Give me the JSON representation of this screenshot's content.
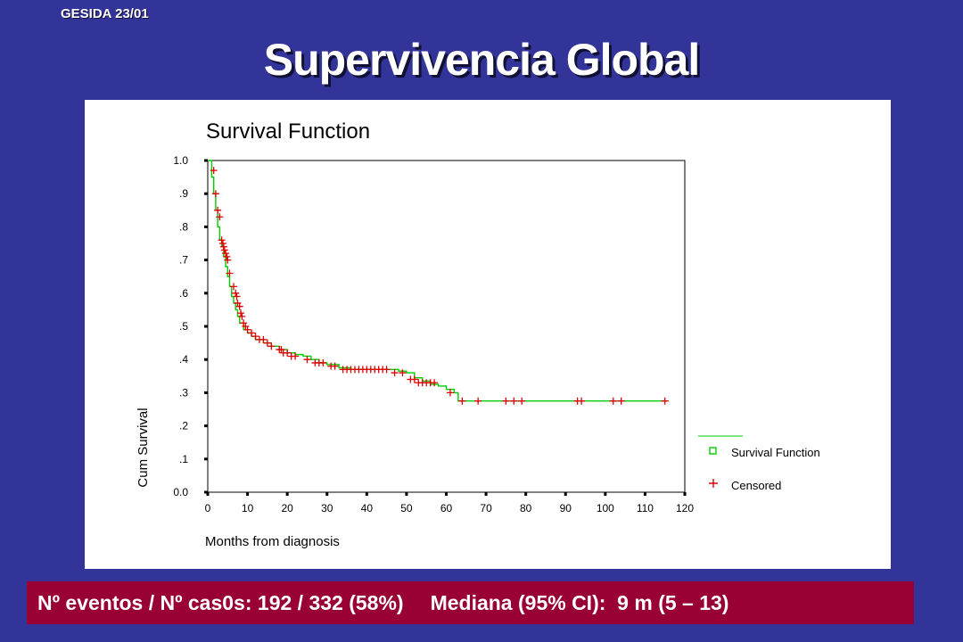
{
  "slide": {
    "tag": "GESIDA 23/01",
    "title": "Supervivencia Global",
    "footer_events": "Nº eventos / Nº cas0s: 192 / 332 (58%)",
    "footer_median": "Mediana (95% CI):  9 m (5 – 13)"
  },
  "colors": {
    "background": "#33349a",
    "footer": "#990033",
    "survival_line": "#00cc00",
    "censor_mark": "#dd0000"
  },
  "chart_data": {
    "type": "line",
    "title": "Survival Function",
    "xlabel": "Months from diagnosis",
    "ylabel": "Cum Survival",
    "xlim": [
      0,
      120
    ],
    "ylim": [
      0,
      1
    ],
    "x_ticks": [
      0,
      10,
      20,
      30,
      40,
      50,
      60,
      70,
      80,
      90,
      100,
      110,
      120
    ],
    "x_tick_labels": [
      "0",
      "10",
      "20",
      "30",
      "40",
      "50",
      "60",
      "70",
      "80",
      "90",
      "100",
      "110",
      "120"
    ],
    "y_ticks": [
      0,
      0.1,
      0.2,
      0.3,
      0.4,
      0.5,
      0.6,
      0.7,
      0.8,
      0.9,
      1.0
    ],
    "y_tick_labels": [
      "0.0",
      ".1",
      ".2",
      ".3",
      ".4",
      ".5",
      ".6",
      ".7",
      ".8",
      ".9",
      "1.0"
    ],
    "grid": false,
    "legend": {
      "position": "right",
      "entries": [
        "Survival Function",
        "Censored"
      ]
    },
    "series": [
      {
        "name": "Survival Function",
        "step": true,
        "x": [
          0,
          1,
          1.5,
          2,
          2.5,
          3,
          3.5,
          4,
          4.5,
          5,
          5.5,
          6,
          6.5,
          7,
          7.5,
          8,
          9,
          10,
          11,
          12,
          14,
          16,
          18,
          20,
          22,
          24,
          26,
          28,
          30,
          33,
          36,
          40,
          44,
          48,
          50,
          52,
          54,
          56,
          58,
          60,
          62,
          63,
          70,
          80,
          90,
          100,
          115
        ],
        "y": [
          1.0,
          0.95,
          0.9,
          0.85,
          0.8,
          0.76,
          0.74,
          0.71,
          0.68,
          0.65,
          0.62,
          0.59,
          0.57,
          0.55,
          0.53,
          0.51,
          0.49,
          0.48,
          0.47,
          0.46,
          0.45,
          0.44,
          0.43,
          0.42,
          0.415,
          0.41,
          0.4,
          0.39,
          0.385,
          0.375,
          0.37,
          0.37,
          0.37,
          0.365,
          0.36,
          0.345,
          0.335,
          0.325,
          0.32,
          0.31,
          0.3,
          0.275,
          0.275,
          0.275,
          0.275,
          0.275,
          0.275
        ]
      }
    ],
    "censored": {
      "name": "Censored",
      "points": [
        [
          1.5,
          0.97
        ],
        [
          2,
          0.9
        ],
        [
          2.5,
          0.85
        ],
        [
          3,
          0.83
        ],
        [
          3.5,
          0.76
        ],
        [
          3.8,
          0.75
        ],
        [
          4,
          0.74
        ],
        [
          4.2,
          0.73
        ],
        [
          4.5,
          0.72
        ],
        [
          4.8,
          0.71
        ],
        [
          5,
          0.7
        ],
        [
          5.5,
          0.66
        ],
        [
          6.5,
          0.62
        ],
        [
          7,
          0.6
        ],
        [
          7.3,
          0.59
        ],
        [
          7.5,
          0.57
        ],
        [
          8,
          0.56
        ],
        [
          8.3,
          0.54
        ],
        [
          8.6,
          0.53
        ],
        [
          9,
          0.51
        ],
        [
          9.5,
          0.5
        ],
        [
          10,
          0.49
        ],
        [
          11,
          0.48
        ],
        [
          12,
          0.47
        ],
        [
          13,
          0.46
        ],
        [
          14,
          0.46
        ],
        [
          15,
          0.45
        ],
        [
          16,
          0.44
        ],
        [
          18,
          0.43
        ],
        [
          18.5,
          0.43
        ],
        [
          19,
          0.42
        ],
        [
          20,
          0.42
        ],
        [
          21,
          0.41
        ],
        [
          22,
          0.41
        ],
        [
          25,
          0.4
        ],
        [
          27,
          0.39
        ],
        [
          28,
          0.39
        ],
        [
          29,
          0.39
        ],
        [
          31,
          0.38
        ],
        [
          32,
          0.38
        ],
        [
          34,
          0.37
        ],
        [
          35,
          0.37
        ],
        [
          36,
          0.37
        ],
        [
          37,
          0.37
        ],
        [
          38,
          0.37
        ],
        [
          39,
          0.37
        ],
        [
          40,
          0.37
        ],
        [
          41,
          0.37
        ],
        [
          42,
          0.37
        ],
        [
          43,
          0.37
        ],
        [
          44,
          0.37
        ],
        [
          45,
          0.37
        ],
        [
          47,
          0.36
        ],
        [
          49,
          0.36
        ],
        [
          51,
          0.34
        ],
        [
          52,
          0.34
        ],
        [
          53,
          0.33
        ],
        [
          54,
          0.33
        ],
        [
          55,
          0.33
        ],
        [
          56,
          0.33
        ],
        [
          57,
          0.33
        ],
        [
          61,
          0.3
        ],
        [
          64,
          0.275
        ],
        [
          68,
          0.275
        ],
        [
          75,
          0.275
        ],
        [
          77,
          0.275
        ],
        [
          79,
          0.275
        ],
        [
          93,
          0.275
        ],
        [
          94,
          0.275
        ],
        [
          102,
          0.275
        ],
        [
          104,
          0.275
        ],
        [
          115,
          0.275
        ]
      ]
    }
  }
}
